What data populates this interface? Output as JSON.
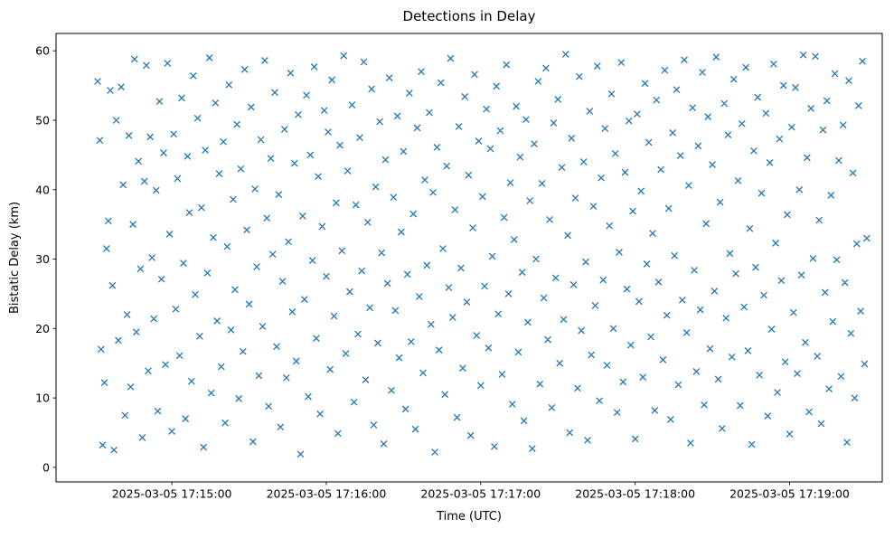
{
  "page": {
    "background": "#ffffff"
  },
  "chart_data": {
    "type": "scatter",
    "title": "Detections in Delay",
    "xlabel": "Time (UTC)",
    "ylabel": "Bistatic Delay (km)",
    "marker": "x",
    "marker_color": "#1f77b4",
    "grid": false,
    "legend": "none",
    "x_encoding": "seconds after 2025-03-05 17:14:00 UTC",
    "xlim": [
      15,
      336
    ],
    "ylim": [
      -2.1,
      62.5
    ],
    "x_ticks": [
      {
        "value": 60,
        "label": "2025-03-05 17:15:00"
      },
      {
        "value": 120,
        "label": "2025-03-05 17:16:00"
      },
      {
        "value": 180,
        "label": "2025-03-05 17:17:00"
      },
      {
        "value": 240,
        "label": "2025-03-05 17:18:00"
      },
      {
        "value": 300,
        "label": "2025-03-05 17:19:00"
      }
    ],
    "y_ticks": [
      0,
      10,
      20,
      30,
      40,
      50,
      60
    ],
    "points": [
      [
        31.2,
        55.6
      ],
      [
        32.0,
        47.1
      ],
      [
        32.5,
        17.0
      ],
      [
        33.1,
        3.2
      ],
      [
        33.8,
        12.2
      ],
      [
        34.6,
        31.5
      ],
      [
        35.3,
        35.5
      ],
      [
        36.1,
        54.3
      ],
      [
        36.9,
        26.2
      ],
      [
        37.5,
        2.5
      ],
      [
        38.4,
        50.0
      ],
      [
        39.2,
        18.3
      ],
      [
        40.3,
        54.8
      ],
      [
        41.1,
        40.7
      ],
      [
        41.8,
        7.5
      ],
      [
        42.6,
        22.0
      ],
      [
        43.3,
        47.8
      ],
      [
        44.0,
        11.6
      ],
      [
        44.9,
        35.0
      ],
      [
        45.5,
        58.8
      ],
      [
        46.2,
        19.5
      ],
      [
        47.0,
        44.1
      ],
      [
        47.8,
        28.6
      ],
      [
        48.5,
        4.3
      ],
      [
        49.3,
        41.2
      ],
      [
        50.1,
        57.9
      ],
      [
        50.8,
        13.9
      ],
      [
        51.6,
        47.6
      ],
      [
        52.3,
        30.2
      ],
      [
        53.0,
        21.4
      ],
      [
        53.9,
        39.9
      ],
      [
        54.5,
        8.1
      ],
      [
        55.2,
        52.7
      ],
      [
        56.0,
        27.1
      ],
      [
        56.8,
        45.3
      ],
      [
        57.5,
        14.8
      ],
      [
        58.3,
        58.2
      ],
      [
        59.1,
        33.6
      ],
      [
        60.0,
        5.2
      ],
      [
        60.7,
        48.0
      ],
      [
        61.5,
        22.8
      ],
      [
        62.2,
        41.6
      ],
      [
        63.0,
        16.1
      ],
      [
        63.8,
        53.2
      ],
      [
        64.5,
        29.4
      ],
      [
        65.3,
        7.0
      ],
      [
        66.1,
        44.8
      ],
      [
        66.8,
        36.7
      ],
      [
        67.6,
        12.4
      ],
      [
        68.3,
        56.4
      ],
      [
        69.1,
        24.9
      ],
      [
        70.0,
        50.3
      ],
      [
        70.8,
        18.9
      ],
      [
        71.5,
        37.4
      ],
      [
        72.3,
        2.9
      ],
      [
        73.0,
        45.7
      ],
      [
        73.8,
        28.0
      ],
      [
        74.6,
        59.0
      ],
      [
        75.3,
        10.7
      ],
      [
        76.1,
        33.1
      ],
      [
        76.9,
        52.5
      ],
      [
        77.6,
        21.1
      ],
      [
        78.4,
        42.3
      ],
      [
        79.2,
        14.5
      ],
      [
        80.0,
        46.9
      ],
      [
        80.7,
        6.4
      ],
      [
        81.5,
        31.8
      ],
      [
        82.2,
        55.1
      ],
      [
        83.0,
        19.8
      ],
      [
        83.8,
        38.6
      ],
      [
        84.5,
        25.6
      ],
      [
        85.3,
        49.4
      ],
      [
        86.0,
        9.9
      ],
      [
        86.8,
        43.0
      ],
      [
        87.6,
        16.7
      ],
      [
        88.3,
        57.3
      ],
      [
        89.1,
        34.2
      ],
      [
        90.0,
        23.5
      ],
      [
        90.8,
        51.9
      ],
      [
        91.5,
        3.7
      ],
      [
        92.3,
        40.1
      ],
      [
        93.0,
        28.9
      ],
      [
        93.8,
        13.2
      ],
      [
        94.6,
        47.2
      ],
      [
        95.3,
        20.3
      ],
      [
        96.1,
        58.6
      ],
      [
        96.9,
        35.9
      ],
      [
        97.6,
        8.8
      ],
      [
        98.4,
        44.5
      ],
      [
        99.2,
        30.7
      ],
      [
        100.0,
        54.0
      ],
      [
        100.7,
        17.4
      ],
      [
        101.5,
        39.3
      ],
      [
        102.2,
        5.8
      ],
      [
        103.0,
        26.8
      ],
      [
        103.8,
        48.7
      ],
      [
        104.5,
        12.9
      ],
      [
        105.3,
        32.5
      ],
      [
        106.1,
        56.8
      ],
      [
        106.8,
        22.4
      ],
      [
        107.6,
        43.8
      ],
      [
        108.3,
        15.3
      ],
      [
        109.1,
        50.8
      ],
      [
        110.0,
        1.9
      ],
      [
        110.8,
        36.2
      ],
      [
        111.5,
        24.2
      ],
      [
        112.3,
        53.6
      ],
      [
        113.0,
        10.2
      ],
      [
        113.8,
        45.0
      ],
      [
        114.6,
        29.8
      ],
      [
        115.3,
        57.7
      ],
      [
        116.1,
        18.6
      ],
      [
        116.9,
        41.9
      ],
      [
        117.6,
        7.7
      ],
      [
        118.4,
        34.7
      ],
      [
        119.2,
        51.4
      ],
      [
        120.0,
        27.5
      ],
      [
        120.7,
        48.3
      ],
      [
        121.5,
        14.1
      ],
      [
        122.2,
        55.8
      ],
      [
        123.0,
        21.8
      ],
      [
        123.8,
        38.1
      ],
      [
        124.5,
        4.9
      ],
      [
        125.3,
        46.4
      ],
      [
        126.1,
        31.2
      ],
      [
        126.8,
        59.3
      ],
      [
        127.6,
        16.4
      ],
      [
        128.3,
        42.7
      ],
      [
        129.1,
        25.3
      ],
      [
        130.0,
        52.2
      ],
      [
        130.8,
        9.4
      ],
      [
        131.5,
        37.8
      ],
      [
        132.3,
        19.2
      ],
      [
        133.0,
        47.5
      ],
      [
        133.8,
        28.3
      ],
      [
        134.6,
        58.4
      ],
      [
        135.3,
        12.6
      ],
      [
        136.1,
        35.3
      ],
      [
        136.9,
        23.0
      ],
      [
        137.6,
        54.5
      ],
      [
        138.4,
        6.1
      ],
      [
        139.2,
        40.4
      ],
      [
        140.0,
        17.9
      ],
      [
        140.8,
        49.8
      ],
      [
        141.5,
        30.9
      ],
      [
        142.3,
        3.4
      ],
      [
        143.0,
        44.3
      ],
      [
        143.8,
        26.5
      ],
      [
        144.5,
        56.1
      ],
      [
        145.3,
        11.1
      ],
      [
        146.1,
        38.9
      ],
      [
        146.8,
        22.6
      ],
      [
        147.6,
        50.6
      ],
      [
        148.3,
        15.8
      ],
      [
        149.1,
        33.9
      ],
      [
        150.0,
        45.5
      ],
      [
        150.8,
        8.4
      ],
      [
        151.5,
        27.8
      ],
      [
        152.3,
        53.9
      ],
      [
        153.0,
        18.1
      ],
      [
        153.8,
        36.5
      ],
      [
        154.6,
        5.5
      ],
      [
        155.3,
        48.9
      ],
      [
        156.1,
        24.6
      ],
      [
        156.9,
        57.0
      ],
      [
        157.6,
        13.6
      ],
      [
        158.3,
        41.4
      ],
      [
        159.1,
        29.1
      ],
      [
        160.0,
        51.1
      ],
      [
        160.7,
        20.6
      ],
      [
        161.5,
        39.6
      ],
      [
        162.2,
        2.2
      ],
      [
        163.0,
        46.1
      ],
      [
        163.8,
        16.9
      ],
      [
        164.5,
        55.4
      ],
      [
        165.3,
        31.5
      ],
      [
        166.1,
        10.5
      ],
      [
        166.8,
        43.4
      ],
      [
        167.6,
        25.9
      ],
      [
        168.3,
        58.9
      ],
      [
        169.1,
        21.6
      ],
      [
        170.0,
        37.1
      ],
      [
        170.8,
        7.2
      ],
      [
        171.5,
        49.1
      ],
      [
        172.3,
        28.7
      ],
      [
        173.0,
        14.3
      ],
      [
        173.8,
        53.4
      ],
      [
        174.6,
        23.8
      ],
      [
        175.3,
        42.1
      ],
      [
        176.1,
        4.6
      ],
      [
        176.9,
        34.5
      ],
      [
        177.6,
        56.6
      ],
      [
        178.4,
        19.0
      ],
      [
        179.2,
        47.0
      ],
      [
        180.0,
        11.8
      ],
      [
        180.7,
        39.0
      ],
      [
        181.5,
        26.1
      ],
      [
        182.2,
        51.6
      ],
      [
        183.0,
        17.2
      ],
      [
        183.8,
        45.9
      ],
      [
        184.5,
        30.4
      ],
      [
        185.3,
        3.0
      ],
      [
        186.1,
        54.9
      ],
      [
        186.8,
        22.1
      ],
      [
        187.6,
        48.5
      ],
      [
        188.3,
        13.4
      ],
      [
        189.1,
        36.0
      ],
      [
        190.0,
        58.0
      ],
      [
        190.8,
        25.0
      ],
      [
        191.5,
        41.0
      ],
      [
        192.3,
        9.1
      ],
      [
        193.0,
        32.8
      ],
      [
        193.8,
        52.0
      ],
      [
        194.6,
        16.6
      ],
      [
        195.3,
        44.7
      ],
      [
        196.1,
        28.1
      ],
      [
        196.8,
        6.7
      ],
      [
        197.6,
        50.1
      ],
      [
        198.3,
        20.9
      ],
      [
        199.1,
        38.4
      ],
      [
        200.0,
        2.7
      ],
      [
        200.8,
        46.6
      ],
      [
        201.5,
        30.0
      ],
      [
        202.3,
        55.6
      ],
      [
        203.0,
        12.0
      ],
      [
        203.8,
        40.9
      ],
      [
        204.5,
        24.4
      ],
      [
        205.3,
        57.5
      ],
      [
        206.1,
        18.4
      ],
      [
        206.8,
        35.7
      ],
      [
        207.6,
        8.6
      ],
      [
        208.3,
        49.6
      ],
      [
        209.1,
        27.3
      ],
      [
        210.0,
        53.0
      ],
      [
        210.7,
        15.0
      ],
      [
        211.5,
        43.2
      ],
      [
        212.2,
        21.3
      ],
      [
        213.0,
        59.5
      ],
      [
        213.8,
        33.4
      ],
      [
        214.6,
        5.0
      ],
      [
        215.3,
        47.4
      ],
      [
        216.1,
        26.3
      ],
      [
        216.8,
        38.8
      ],
      [
        217.6,
        11.4
      ],
      [
        218.3,
        56.3
      ],
      [
        219.1,
        19.7
      ],
      [
        220.0,
        44.0
      ],
      [
        220.8,
        29.6
      ],
      [
        221.5,
        3.9
      ],
      [
        222.3,
        51.3
      ],
      [
        223.0,
        16.2
      ],
      [
        223.8,
        37.6
      ],
      [
        224.5,
        23.3
      ],
      [
        225.3,
        57.8
      ],
      [
        226.1,
        9.6
      ],
      [
        226.8,
        41.7
      ],
      [
        227.6,
        27.0
      ],
      [
        228.3,
        48.8
      ],
      [
        229.1,
        14.7
      ],
      [
        230.0,
        34.8
      ],
      [
        230.8,
        53.8
      ],
      [
        231.5,
        20.0
      ],
      [
        232.3,
        45.2
      ],
      [
        233.0,
        7.9
      ],
      [
        233.8,
        31.0
      ],
      [
        234.6,
        58.3
      ],
      [
        235.3,
        12.3
      ],
      [
        236.1,
        42.5
      ],
      [
        236.8,
        25.7
      ],
      [
        237.6,
        49.9
      ],
      [
        238.3,
        17.6
      ],
      [
        239.1,
        36.9
      ],
      [
        240.0,
        4.1
      ],
      [
        240.8,
        50.9
      ],
      [
        241.5,
        23.9
      ],
      [
        242.3,
        39.8
      ],
      [
        243.0,
        13.0
      ],
      [
        243.8,
        55.3
      ],
      [
        244.5,
        29.3
      ],
      [
        245.3,
        46.8
      ],
      [
        246.1,
        18.8
      ],
      [
        246.8,
        33.7
      ],
      [
        247.6,
        8.2
      ],
      [
        248.3,
        52.9
      ],
      [
        249.1,
        26.7
      ],
      [
        250.0,
        42.9
      ],
      [
        250.8,
        15.5
      ],
      [
        251.5,
        57.2
      ],
      [
        252.3,
        21.9
      ],
      [
        253.0,
        37.3
      ],
      [
        253.8,
        6.9
      ],
      [
        254.6,
        48.2
      ],
      [
        255.3,
        30.5
      ],
      [
        256.1,
        54.4
      ],
      [
        256.8,
        11.9
      ],
      [
        257.6,
        44.9
      ],
      [
        258.3,
        24.1
      ],
      [
        259.1,
        58.7
      ],
      [
        260.0,
        19.4
      ],
      [
        260.8,
        40.6
      ],
      [
        261.5,
        3.5
      ],
      [
        262.3,
        51.8
      ],
      [
        263.0,
        28.4
      ],
      [
        263.8,
        13.8
      ],
      [
        264.5,
        46.3
      ],
      [
        265.3,
        22.7
      ],
      [
        266.1,
        56.9
      ],
      [
        266.8,
        9.0
      ],
      [
        267.6,
        35.1
      ],
      [
        268.3,
        50.5
      ],
      [
        269.1,
        17.1
      ],
      [
        270.0,
        43.6
      ],
      [
        270.8,
        25.4
      ],
      [
        271.5,
        59.1
      ],
      [
        272.3,
        12.7
      ],
      [
        273.0,
        38.2
      ],
      [
        273.8,
        5.6
      ],
      [
        274.6,
        52.4
      ],
      [
        275.3,
        21.5
      ],
      [
        276.1,
        47.9
      ],
      [
        276.8,
        30.8
      ],
      [
        277.6,
        15.9
      ],
      [
        278.3,
        55.9
      ],
      [
        279.1,
        27.9
      ],
      [
        280.0,
        41.3
      ],
      [
        280.8,
        8.9
      ],
      [
        281.5,
        49.5
      ],
      [
        282.3,
        23.1
      ],
      [
        283.0,
        57.6
      ],
      [
        283.8,
        16.8
      ],
      [
        284.5,
        34.4
      ],
      [
        285.3,
        3.3
      ],
      [
        286.1,
        45.6
      ],
      [
        286.8,
        28.8
      ],
      [
        287.6,
        53.3
      ],
      [
        288.3,
        13.3
      ],
      [
        289.1,
        39.5
      ],
      [
        290.0,
        24.8
      ],
      [
        290.8,
        51.0
      ],
      [
        291.5,
        7.4
      ],
      [
        292.3,
        43.9
      ],
      [
        293.0,
        19.9
      ],
      [
        293.8,
        58.1
      ],
      [
        294.6,
        32.3
      ],
      [
        295.3,
        10.8
      ],
      [
        296.1,
        47.3
      ],
      [
        296.8,
        26.9
      ],
      [
        297.6,
        55.0
      ],
      [
        298.3,
        15.2
      ],
      [
        299.1,
        36.4
      ],
      [
        300.0,
        4.8
      ],
      [
        300.8,
        49.0
      ],
      [
        301.5,
        22.3
      ],
      [
        302.3,
        54.7
      ],
      [
        303.0,
        13.5
      ],
      [
        303.8,
        40.0
      ],
      [
        304.6,
        27.7
      ],
      [
        305.3,
        59.4
      ],
      [
        306.1,
        18.0
      ],
      [
        306.8,
        44.6
      ],
      [
        307.6,
        8.0
      ],
      [
        308.3,
        51.7
      ],
      [
        309.1,
        30.1
      ],
      [
        310.0,
        59.2
      ],
      [
        310.8,
        16.0
      ],
      [
        311.5,
        35.6
      ],
      [
        312.3,
        6.3
      ],
      [
        313.0,
        48.6
      ],
      [
        313.8,
        25.2
      ],
      [
        314.5,
        52.8
      ],
      [
        315.3,
        11.3
      ],
      [
        316.1,
        39.2
      ],
      [
        316.8,
        21.0
      ],
      [
        317.6,
        56.7
      ],
      [
        318.3,
        29.9
      ],
      [
        319.1,
        44.2
      ],
      [
        320.0,
        13.1
      ],
      [
        320.8,
        49.3
      ],
      [
        321.5,
        26.6
      ],
      [
        322.3,
        3.6
      ],
      [
        323.0,
        55.7
      ],
      [
        323.8,
        19.3
      ],
      [
        324.6,
        42.4
      ],
      [
        325.3,
        10.0
      ],
      [
        326.1,
        32.2
      ],
      [
        326.8,
        52.1
      ],
      [
        327.6,
        22.5
      ],
      [
        328.3,
        58.5
      ],
      [
        329.1,
        14.9
      ],
      [
        330.0,
        33.0
      ]
    ]
  }
}
